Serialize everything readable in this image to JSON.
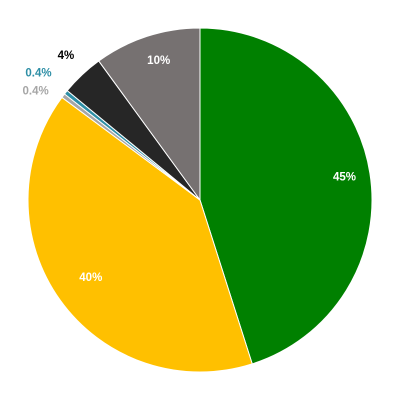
{
  "chart_data": {
    "type": "pie",
    "start_angle_deg": 0,
    "direction": "clockwise",
    "slices": [
      {
        "value": 45,
        "label": "45%",
        "color": "#008000",
        "label_color": "#ffffff"
      },
      {
        "value": 40,
        "label": "40%",
        "color": "#FFC000",
        "label_color": "#ffffff"
      },
      {
        "value": 0.4,
        "label": "0.4%",
        "color": "#A6A6A6",
        "label_color": "#A6A6A6"
      },
      {
        "value": 0.4,
        "label": "0.4%",
        "color": "#2E8FA6",
        "label_color": "#2E8FA6"
      },
      {
        "value": 4,
        "label": "4%",
        "color": "#262626",
        "label_color": "#000000"
      },
      {
        "value": 10,
        "label": "10%",
        "color": "#767171",
        "label_color": "#ffffff"
      }
    ]
  }
}
